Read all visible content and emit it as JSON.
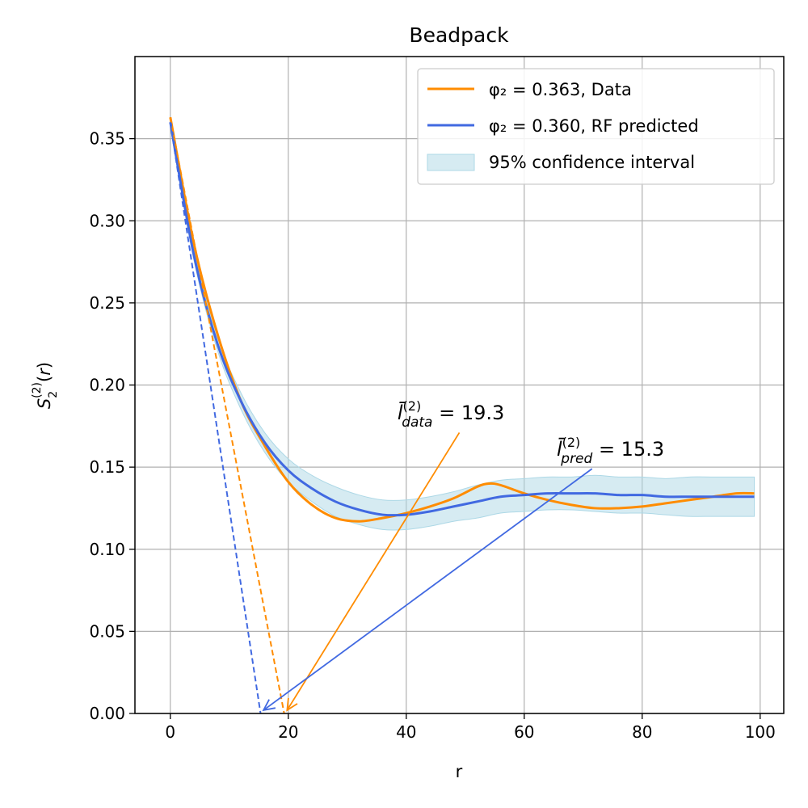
{
  "chart_data": {
    "type": "line",
    "title": "Beadpack",
    "xlabel": "r",
    "ylabel": "S_2^(2)(r)",
    "xlim": [
      -6,
      104
    ],
    "ylim": [
      0,
      0.4
    ],
    "xticks": [
      0,
      20,
      40,
      60,
      80,
      100
    ],
    "xtick_labels": [
      "0",
      "20",
      "40",
      "60",
      "80",
      "100"
    ],
    "yticks": [
      0.0,
      0.05,
      0.1,
      0.15,
      0.2,
      0.25,
      0.3,
      0.35
    ],
    "ytick_labels": [
      "0.00",
      "0.05",
      "0.10",
      "0.15",
      "0.20",
      "0.25",
      "0.30",
      "0.35"
    ],
    "grid": true,
    "legend_position": "upper-right",
    "series": [
      {
        "name": "φ₂ = 0.363, Data",
        "color": "#ff8c00",
        "x": [
          0,
          4,
          8,
          12,
          16,
          20,
          24,
          28,
          32,
          36,
          40,
          44,
          48,
          52,
          54,
          56,
          60,
          64,
          68,
          72,
          76,
          80,
          84,
          88,
          92,
          96,
          99
        ],
        "y": [
          0.363,
          0.286,
          0.231,
          0.19,
          0.163,
          0.141,
          0.127,
          0.119,
          0.117,
          0.119,
          0.122,
          0.126,
          0.131,
          0.138,
          0.14,
          0.139,
          0.134,
          0.13,
          0.127,
          0.125,
          0.125,
          0.126,
          0.128,
          0.13,
          0.132,
          0.134,
          0.134
        ]
      },
      {
        "name": "φ₂ = 0.360, RF predicted",
        "color": "#4169e1",
        "x": [
          0,
          4,
          8,
          12,
          16,
          20,
          24,
          28,
          32,
          36,
          40,
          44,
          48,
          52,
          56,
          60,
          64,
          68,
          72,
          76,
          80,
          84,
          88,
          92,
          96,
          99
        ],
        "y": [
          0.36,
          0.279,
          0.225,
          0.19,
          0.165,
          0.148,
          0.137,
          0.129,
          0.124,
          0.121,
          0.121,
          0.123,
          0.126,
          0.129,
          0.132,
          0.133,
          0.134,
          0.134,
          0.134,
          0.133,
          0.133,
          0.132,
          0.132,
          0.132,
          0.132,
          0.132
        ],
        "ci_half_width": [
          0.002,
          0.003,
          0.004,
          0.005,
          0.006,
          0.007,
          0.008,
          0.009,
          0.009,
          0.009,
          0.009,
          0.009,
          0.009,
          0.01,
          0.01,
          0.01,
          0.01,
          0.01,
          0.011,
          0.011,
          0.011,
          0.011,
          0.012,
          0.012,
          0.012,
          0.012
        ]
      }
    ],
    "confidence_band": {
      "name": "95% confidence interval",
      "color": "#add8e6"
    },
    "tangent_lines": [
      {
        "color": "#ff8c00",
        "from": [
          0,
          0.363
        ],
        "to": [
          19.3,
          0.0
        ]
      },
      {
        "color": "#4169e1",
        "from": [
          0,
          0.36
        ],
        "to": [
          15.3,
          0.0
        ]
      }
    ],
    "annotations": [
      {
        "symbol": "l̄",
        "sup": "(2)",
        "sub": "data",
        "text": " = 19.3",
        "value": 19.3,
        "color": "#ff8c00",
        "label_at": [
          38.5,
          0.179
        ],
        "arrow_from": [
          49,
          0.171
        ],
        "arrow_to": [
          19.8,
          0.002
        ]
      },
      {
        "symbol": "l̄",
        "sup": "(2)",
        "sub": "pred",
        "text": " = 15.3",
        "value": 15.3,
        "color": "#4169e1",
        "label_at": [
          65.5,
          0.157
        ],
        "arrow_from": [
          71.5,
          0.149
        ],
        "arrow_to": [
          15.8,
          0.002
        ]
      }
    ]
  }
}
